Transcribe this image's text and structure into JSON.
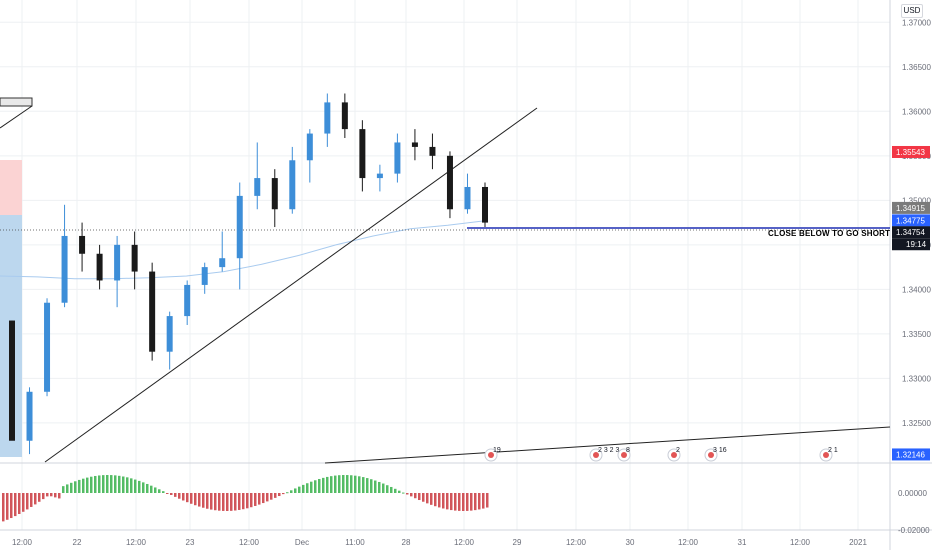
{
  "currency": "USD",
  "colors": {
    "up": "#3d8ed8",
    "down": "#1a1a1a",
    "grid": "#eef0f3",
    "axis": "#6a6d78",
    "ma": "#a9cbef",
    "hline": "#1f2fb3",
    "close_label_bg": "#ffffff",
    "price_red": "#f23645",
    "price_blue": "#2962ff",
    "price_gray": "#7b7b7b",
    "price_dark": "#131722",
    "hist_up": "#36b04a",
    "hist_down": "#c9373d",
    "zone_red": "#fbd3d3",
    "zone_blue": "#bcd7ee"
  },
  "price_axis": {
    "ticks": [
      "1.37000",
      "1.36500",
      "1.36000",
      "1.35500",
      "1.35000",
      "1.34500",
      "1.34000",
      "1.33500",
      "1.33000",
      "1.32500"
    ],
    "labels": [
      {
        "text": "1.35543",
        "style": "red",
        "value": 1.35543
      },
      {
        "text": "1.34915",
        "style": "gray",
        "value": 1.34915
      },
      {
        "text": "1.34775",
        "style": "blue",
        "value": 1.34775
      },
      {
        "text": "1.34754",
        "style": "dark",
        "value": 1.34754
      },
      {
        "text": "19:14",
        "style": "dark_sub",
        "value": 1.34754
      },
      {
        "text": "1.32146",
        "style": "blue",
        "value": 1.32146
      }
    ],
    "ylim": [
      1.3205,
      1.3725
    ]
  },
  "indicator_axis": {
    "ticks": [
      "0.00000",
      "-0.02000"
    ]
  },
  "time_axis": {
    "labels": [
      "12:00",
      "22",
      "12:00",
      "23",
      "12:00",
      "Dec",
      "11:00",
      "28",
      "12:00",
      "29",
      "12:00",
      "30",
      "12:00",
      "31",
      "12:00",
      "2021",
      "12:00"
    ]
  },
  "annotations": {
    "close_below": "CLOSE BELOW TO GO SHORT"
  },
  "events": [
    {
      "text": "19"
    },
    {
      "text": "2 3 2 3"
    },
    {
      "text": "8"
    },
    {
      "text": "2"
    },
    {
      "text": "3 16"
    },
    {
      "text": "2 1"
    }
  ],
  "chart_data": {
    "type": "candlestick",
    "symbol_quote": "USD",
    "ylim": [
      1.3205,
      1.3725
    ],
    "horizontal_line": 1.34775,
    "moving_average_approx": [
      1.3415,
      1.3414,
      1.3412,
      1.3412,
      1.3413,
      1.3415,
      1.342,
      1.3428,
      1.3438,
      1.345,
      1.346,
      1.3468,
      1.3472,
      1.3477
    ],
    "candles_approx": [
      {
        "o": 1.3365,
        "h": 1.3365,
        "l": 1.324,
        "c": 1.323
      },
      {
        "o": 1.323,
        "h": 1.329,
        "l": 1.3215,
        "c": 1.3285
      },
      {
        "o": 1.3285,
        "h": 1.339,
        "l": 1.328,
        "c": 1.3385
      },
      {
        "o": 1.3385,
        "h": 1.3495,
        "l": 1.338,
        "c": 1.346
      },
      {
        "o": 1.346,
        "h": 1.3475,
        "l": 1.342,
        "c": 1.344
      },
      {
        "o": 1.344,
        "h": 1.345,
        "l": 1.34,
        "c": 1.341
      },
      {
        "o": 1.341,
        "h": 1.346,
        "l": 1.338,
        "c": 1.345
      },
      {
        "o": 1.345,
        "h": 1.3465,
        "l": 1.34,
        "c": 1.342
      },
      {
        "o": 1.342,
        "h": 1.343,
        "l": 1.332,
        "c": 1.333
      },
      {
        "o": 1.333,
        "h": 1.3375,
        "l": 1.331,
        "c": 1.337
      },
      {
        "o": 1.337,
        "h": 1.341,
        "l": 1.336,
        "c": 1.3405
      },
      {
        "o": 1.3405,
        "h": 1.343,
        "l": 1.3395,
        "c": 1.3425
      },
      {
        "o": 1.3425,
        "h": 1.3465,
        "l": 1.342,
        "c": 1.3435
      },
      {
        "o": 1.3435,
        "h": 1.352,
        "l": 1.34,
        "c": 1.3505
      },
      {
        "o": 1.3505,
        "h": 1.3565,
        "l": 1.349,
        "c": 1.3525
      },
      {
        "o": 1.3525,
        "h": 1.3535,
        "l": 1.347,
        "c": 1.349
      },
      {
        "o": 1.349,
        "h": 1.356,
        "l": 1.3485,
        "c": 1.3545
      },
      {
        "o": 1.3545,
        "h": 1.358,
        "l": 1.352,
        "c": 1.3575
      },
      {
        "o": 1.3575,
        "h": 1.362,
        "l": 1.356,
        "c": 1.361
      },
      {
        "o": 1.361,
        "h": 1.362,
        "l": 1.357,
        "c": 1.358
      },
      {
        "o": 1.358,
        "h": 1.359,
        "l": 1.351,
        "c": 1.3525
      },
      {
        "o": 1.3525,
        "h": 1.354,
        "l": 1.351,
        "c": 1.353
      },
      {
        "o": 1.353,
        "h": 1.3575,
        "l": 1.352,
        "c": 1.3565
      },
      {
        "o": 1.3565,
        "h": 1.358,
        "l": 1.3545,
        "c": 1.356
      },
      {
        "o": 1.356,
        "h": 1.3575,
        "l": 1.3535,
        "c": 1.355
      },
      {
        "o": 1.355,
        "h": 1.3555,
        "l": 1.348,
        "c": 1.349
      },
      {
        "o": 1.349,
        "h": 1.353,
        "l": 1.3485,
        "c": 1.3515
      },
      {
        "o": 1.3515,
        "h": 1.352,
        "l": 1.347,
        "c": 1.3475
      }
    ]
  }
}
